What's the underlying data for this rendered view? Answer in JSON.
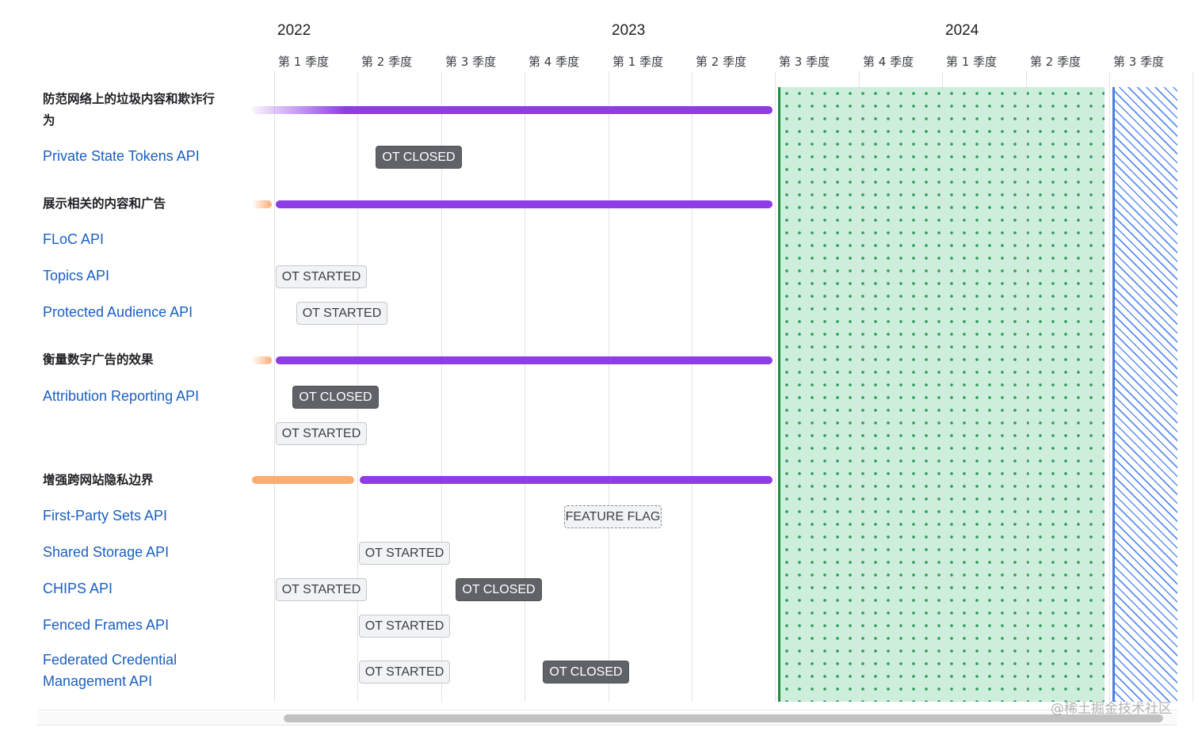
{
  "chart_data": {
    "type": "gantt",
    "years": [
      "2022",
      "2023",
      "2024"
    ],
    "quarters": [
      "第 1 季度",
      "第 2 季度",
      "第 3 季度",
      "第 4 季度",
      "第 1 季度",
      "第 2 季度",
      "第 3 季度",
      "第 4 季度",
      "第 1 季度",
      "第 2 季度",
      "第 3 季度"
    ],
    "rows": [
      {
        "kind": "group",
        "label": "防范网络上的垃圾内容和欺诈行为"
      },
      {
        "kind": "api",
        "label": "Private State Tokens API"
      },
      {
        "kind": "group",
        "label": "展示相关的内容和广告"
      },
      {
        "kind": "api",
        "label": "FLoC API"
      },
      {
        "kind": "api",
        "label": "Topics API"
      },
      {
        "kind": "api",
        "label": "Protected Audience API"
      },
      {
        "kind": "group",
        "label": "衡量数字广告的效果"
      },
      {
        "kind": "api",
        "label": "Attribution Reporting API"
      },
      {
        "kind": "group",
        "label": "增强跨网站隐私边界"
      },
      {
        "kind": "api",
        "label": "First-Party Sets API"
      },
      {
        "kind": "api",
        "label": "Shared Storage API"
      },
      {
        "kind": "api",
        "label": "CHIPS API"
      },
      {
        "kind": "api",
        "label": "Fenced Frames API"
      },
      {
        "kind": "api",
        "label": "Federated Credential Management API"
      }
    ],
    "bars": [
      {
        "row": 0,
        "color": "purple",
        "start_quarter": 0,
        "end_quarter": 6
      },
      {
        "row": 2,
        "color": "orange",
        "start_quarter": 0,
        "end_quarter": 0
      },
      {
        "row": 2,
        "color": "purple",
        "start_quarter": 0,
        "end_quarter": 6
      },
      {
        "row": 6,
        "color": "orange",
        "start_quarter": 0,
        "end_quarter": 0
      },
      {
        "row": 6,
        "color": "purple",
        "start_quarter": 0,
        "end_quarter": 6
      },
      {
        "row": 8,
        "color": "orange",
        "start_quarter": 0,
        "end_quarter": 1
      },
      {
        "row": 8,
        "color": "purple",
        "start_quarter": 1,
        "end_quarter": 6
      }
    ],
    "milestones": [
      {
        "api": "Private State Tokens API",
        "label": "OT CLOSED",
        "status": "closed",
        "quarter": 1.2
      },
      {
        "api": "Topics API",
        "label": "OT STARTED",
        "status": "started",
        "quarter": 0.0
      },
      {
        "api": "Protected Audience API",
        "label": "OT STARTED",
        "status": "started",
        "quarter": 0.25
      },
      {
        "api": "Attribution Reporting API",
        "label": "OT CLOSED",
        "status": "closed",
        "quarter": 0.2
      },
      {
        "api": "Attribution Reporting API",
        "label": "OT STARTED",
        "status": "started",
        "quarter": 0.0
      },
      {
        "api": "First-Party Sets API",
        "label": "FEATURE FLAG",
        "status": "flag",
        "quarter": 3.45
      },
      {
        "api": "Shared Storage API",
        "label": "OT STARTED",
        "status": "started",
        "quarter": 1.0
      },
      {
        "api": "CHIPS API",
        "label": "OT STARTED",
        "status": "started",
        "quarter": 0.0
      },
      {
        "api": "CHIPS API",
        "label": "OT CLOSED",
        "status": "closed",
        "quarter": 2.15
      },
      {
        "api": "Fenced Frames API",
        "label": "OT STARTED",
        "status": "started",
        "quarter": 1.0
      },
      {
        "api": "Federated Credential Management API",
        "label": "OT STARTED",
        "status": "started",
        "quarter": 1.0
      },
      {
        "api": "Federated Credential Management API",
        "label": "OT CLOSED",
        "status": "closed",
        "quarter": 3.2
      }
    ],
    "shaded_regions": [
      {
        "style": "green-dotted",
        "start_quarter": 6,
        "end_quarter": 10
      },
      {
        "style": "blue-hatched",
        "start_quarter": 10,
        "end_quarter": 11
      }
    ],
    "colors": {
      "purple": "#8e3ce6",
      "orange": "#fdad72",
      "api_text": "#1a5fc2",
      "closed_badge": "#5f6368",
      "green_region": "#cdeedb",
      "blue_hatch": "#5b8def"
    }
  },
  "watermark": "@稀土掘金技术社区"
}
